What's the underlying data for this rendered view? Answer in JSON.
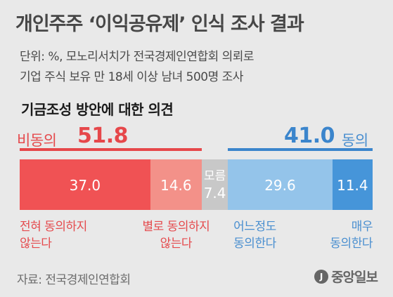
{
  "header": {
    "title": "개인주주 ‘이익공유제’ 인식 조사 결과",
    "note_line1": "단위: %, 모노리서치가 전국경제인연합회 의뢰로",
    "note_line2": "기업 주식 보유 만 18세 이상 남녀 500명 조사",
    "subtitle": "기금조성 방안에 대한 의견"
  },
  "chart_data": {
    "type": "bar",
    "orientation": "horizontal-stacked",
    "groups": [
      {
        "label": "비동의",
        "value": 51.8,
        "color": "#e6474a"
      },
      {
        "label": "동의",
        "value": 41.0,
        "color": "#3b85cc"
      }
    ],
    "segments": [
      {
        "id": "seg-strongly-disagree",
        "label_line1": "전혀 동의하지",
        "label_line2": "않는다",
        "value": 37.0,
        "display": "37.0",
        "color": "#f05254",
        "label_color": "#e54a4d"
      },
      {
        "id": "seg-disagree",
        "label_line1": "별로 동의하지",
        "label_line2": "않는다",
        "value": 14.6,
        "display": "14.6",
        "color": "#f39189",
        "label_color": "#e54a4d"
      },
      {
        "id": "seg-dont-know",
        "label_line1": "모름",
        "label_line2": "",
        "value": 7.4,
        "display": "7.4",
        "color": "#c8c8c8",
        "label_color": "#ffffff"
      },
      {
        "id": "seg-somewhat-agree",
        "label_line1": "어느정도",
        "label_line2": "동의한다",
        "value": 29.6,
        "display": "29.6",
        "color": "#94c4ea",
        "label_color": "#4a8fd0"
      },
      {
        "id": "seg-strongly-agree",
        "label_line1": "매우",
        "label_line2": "동의한다",
        "value": 11.4,
        "display": "11.4",
        "color": "#4695d9",
        "label_color": "#4a8fd0"
      }
    ]
  },
  "footer": {
    "source": "자료: 전국경제인연합회",
    "logo_mark": "J",
    "logo_text": "중앙일보"
  }
}
